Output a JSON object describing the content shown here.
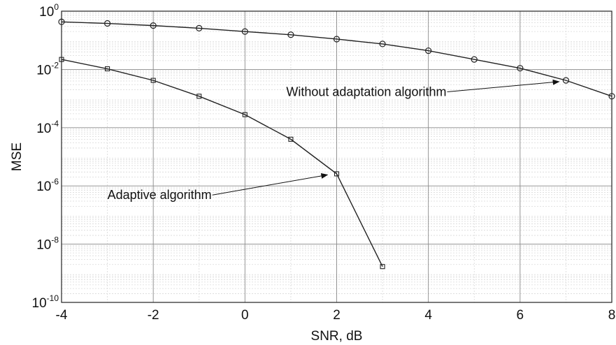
{
  "chart_data": {
    "type": "line",
    "xlabel": "SNR, dB",
    "ylabel": "MSE",
    "xlim": [
      -4,
      8
    ],
    "ylim": [
      1e-10,
      1
    ],
    "yscale": "log",
    "grid": true,
    "minor_grid": true,
    "x_ticks": [
      "-4",
      "-2",
      "0",
      "2",
      "4",
      "6",
      "8"
    ],
    "y_ticks": [
      {
        "base": "10",
        "exp": "0"
      },
      {
        "base": "10",
        "exp": "-2"
      },
      {
        "base": "10",
        "exp": "-4"
      },
      {
        "base": "10",
        "exp": "-6"
      },
      {
        "base": "10",
        "exp": "-8"
      },
      {
        "base": "10",
        "exp": "-10"
      }
    ],
    "series": [
      {
        "marker": "circle",
        "x": [
          -4,
          -3,
          -2,
          -1,
          0,
          1,
          2,
          3,
          4,
          5,
          6,
          7,
          8
        ],
        "y": [
          0.43,
          0.38,
          0.32,
          0.26,
          0.2,
          0.155,
          0.11,
          0.075,
          0.044,
          0.022,
          0.011,
          0.0042,
          0.0012
        ]
      },
      {
        "marker": "square",
        "x": [
          -4,
          -3,
          -2,
          -1,
          0,
          1,
          2,
          3
        ],
        "y": [
          0.022,
          0.0105,
          0.0042,
          0.0012,
          0.00028,
          4e-05,
          2.6e-06,
          1.7e-09
        ]
      }
    ],
    "annotations": [
      {
        "text": "Without adaptation algorithm",
        "x": 0.9,
        "y": 0.00122,
        "arrow_to": [
          6.85,
          0.0038
        ]
      },
      {
        "text": "Adaptive algorithm",
        "x": -3,
        "y": 3.5e-07,
        "arrow_to": [
          1.8,
          2.4e-06
        ]
      }
    ]
  }
}
